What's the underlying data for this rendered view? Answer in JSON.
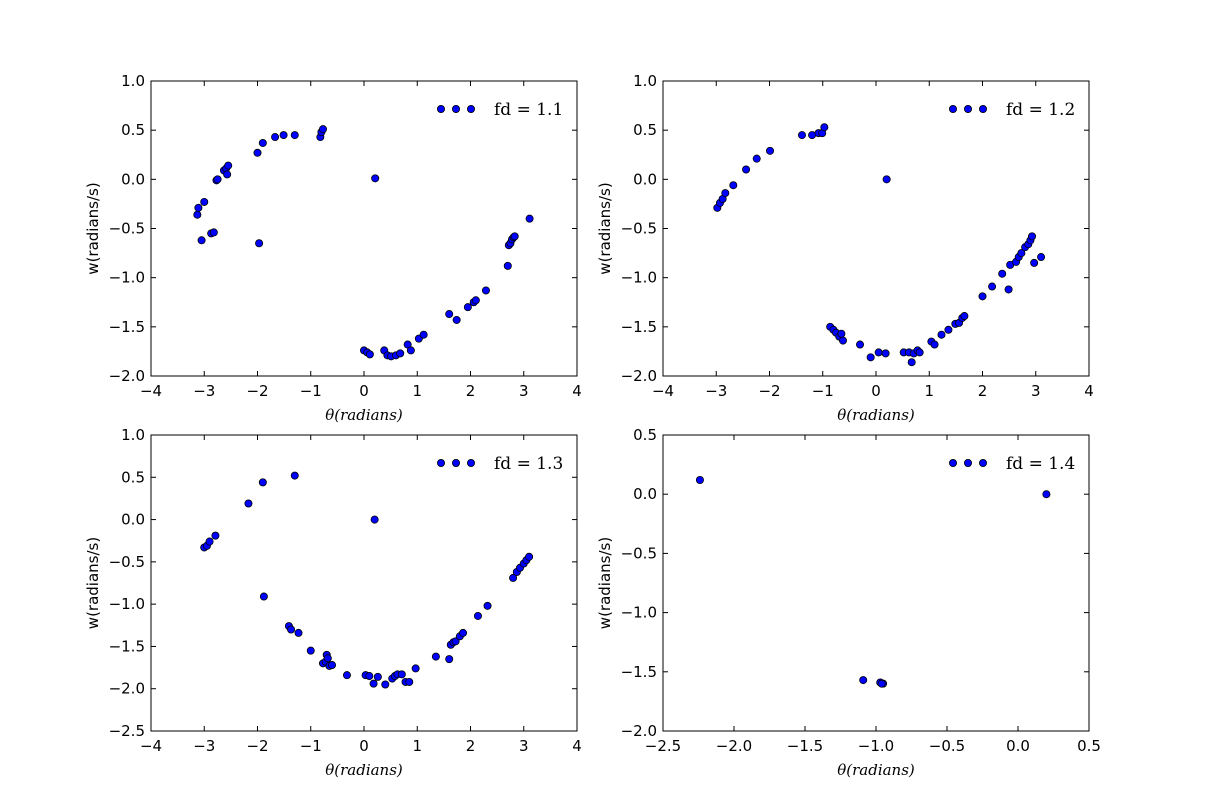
{
  "figure": {
    "background": "#ffffff"
  },
  "chart_data": [
    {
      "type": "scatter",
      "xlabel": "θ(radians)",
      "ylabel": "w(radians/s)",
      "xlim": [
        -4,
        4
      ],
      "ylim": [
        -2,
        1
      ],
      "xticks": [
        -4,
        -3,
        -2,
        -1,
        0,
        1,
        2,
        3,
        4
      ],
      "yticks": [
        -2.0,
        -1.5,
        -1.0,
        -0.5,
        0.0,
        0.5,
        1.0
      ],
      "xtick_labels": [
        "−4",
        "−3",
        "−2",
        "−1",
        "0",
        "1",
        "2",
        "3",
        "4"
      ],
      "ytick_labels": [
        "−2.0",
        "−1.5",
        "−1.0",
        "−0.5",
        "0.0",
        "0.5",
        "1.0"
      ],
      "legend": {
        "label": "fd = 1.1",
        "placement": "top-right"
      },
      "marker_color": "#0000ff",
      "x": [
        -3.13,
        -3.11,
        -3.05,
        -3.0,
        -2.87,
        -2.82,
        -2.77,
        -2.75,
        -2.63,
        -2.59,
        -2.57,
        -2.55,
        -2.0,
        -1.97,
        -1.9,
        -1.67,
        -1.51,
        -1.3,
        -0.82,
        -0.8,
        -0.77,
        0.0,
        0.06,
        0.11,
        0.21,
        0.38,
        0.44,
        0.51,
        0.6,
        0.68,
        0.82,
        0.88,
        1.03,
        1.12,
        1.6,
        1.74,
        1.95,
        2.06,
        2.1,
        2.29,
        2.7,
        2.72,
        2.75,
        2.78,
        2.81,
        2.83,
        3.11
      ],
      "y": [
        -0.36,
        -0.29,
        -0.62,
        -0.23,
        -0.55,
        -0.54,
        -0.01,
        0.0,
        0.09,
        0.11,
        0.05,
        0.14,
        0.27,
        -0.65,
        0.37,
        0.43,
        0.45,
        0.45,
        0.43,
        0.48,
        0.51,
        -1.74,
        -1.76,
        -1.78,
        0.01,
        -1.74,
        -1.79,
        -1.8,
        -1.79,
        -1.77,
        -1.68,
        -1.74,
        -1.62,
        -1.58,
        -1.37,
        -1.43,
        -1.3,
        -1.25,
        -1.23,
        -1.13,
        -0.88,
        -0.67,
        -0.65,
        -0.61,
        -0.59,
        -0.58,
        -0.4
      ]
    },
    {
      "type": "scatter",
      "xlabel": "θ(radians)",
      "ylabel": "w(radians/s)",
      "xlim": [
        -4,
        4
      ],
      "ylim": [
        -2,
        1
      ],
      "xticks": [
        -4,
        -3,
        -2,
        -1,
        0,
        1,
        2,
        3,
        4
      ],
      "yticks": [
        -2.0,
        -1.5,
        -1.0,
        -0.5,
        0.0,
        0.5,
        1.0
      ],
      "xtick_labels": [
        "−4",
        "−3",
        "−2",
        "−1",
        "0",
        "1",
        "2",
        "3",
        "4"
      ],
      "ytick_labels": [
        "−2.0",
        "−1.5",
        "−1.0",
        "−0.5",
        "0.0",
        "0.5",
        "1.0"
      ],
      "legend": {
        "label": "fd = 1.2",
        "placement": "top-right"
      },
      "marker_color": "#0000ff",
      "x": [
        -2.98,
        -2.93,
        -2.88,
        -2.83,
        -2.68,
        -2.44,
        -2.24,
        -1.99,
        -1.39,
        -1.2,
        -1.08,
        -1.01,
        -0.97,
        -0.86,
        -0.8,
        -0.75,
        -0.69,
        -0.65,
        -0.62,
        -0.3,
        -0.1,
        0.05,
        0.18,
        0.2,
        0.52,
        0.62,
        0.67,
        0.71,
        0.78,
        0.82,
        1.04,
        1.1,
        1.23,
        1.36,
        1.49,
        1.56,
        1.62,
        1.66,
        2.0,
        2.18,
        2.37,
        2.49,
        2.52,
        2.63,
        2.68,
        2.73,
        2.8,
        2.86,
        2.9,
        2.93,
        2.97,
        3.1
      ],
      "y": [
        -0.29,
        -0.24,
        -0.2,
        -0.14,
        -0.06,
        0.1,
        0.21,
        0.29,
        0.45,
        0.45,
        0.47,
        0.47,
        0.53,
        -1.5,
        -1.53,
        -1.56,
        -1.6,
        -1.57,
        -1.64,
        -1.68,
        -1.81,
        -1.76,
        -1.77,
        0.0,
        -1.76,
        -1.76,
        -1.86,
        -1.77,
        -1.74,
        -1.76,
        -1.65,
        -1.68,
        -1.58,
        -1.53,
        -1.47,
        -1.46,
        -1.41,
        -1.39,
        -1.19,
        -1.09,
        -0.96,
        -1.12,
        -0.87,
        -0.84,
        -0.79,
        -0.75,
        -0.69,
        -0.66,
        -0.62,
        -0.58,
        -0.85,
        -0.79
      ]
    },
    {
      "type": "scatter",
      "xlabel": "θ(radians)",
      "ylabel": "w(radians/s)",
      "xlim": [
        -4,
        4
      ],
      "ylim": [
        -2.5,
        1
      ],
      "xticks": [
        -4,
        -3,
        -2,
        -1,
        0,
        1,
        2,
        3,
        4
      ],
      "yticks": [
        -2.5,
        -2.0,
        -1.5,
        -1.0,
        -0.5,
        0.0,
        0.5,
        1.0
      ],
      "xtick_labels": [
        "−4",
        "−3",
        "−2",
        "−1",
        "0",
        "1",
        "2",
        "3",
        "4"
      ],
      "ytick_labels": [
        "−2.5",
        "−2.0",
        "−1.5",
        "−1.0",
        "−0.5",
        "0.0",
        "0.5",
        "1.0"
      ],
      "legend": {
        "label": "fd = 1.3",
        "placement": "top-right"
      },
      "marker_color": "#0000ff",
      "x": [
        -3.0,
        -2.95,
        -2.9,
        -2.79,
        -2.17,
        -1.9,
        -1.88,
        -1.3,
        -1.41,
        -1.37,
        -1.23,
        -1.0,
        -0.77,
        -0.72,
        -0.7,
        -0.68,
        -0.65,
        -0.6,
        -0.32,
        0.03,
        0.1,
        0.18,
        0.2,
        0.26,
        0.4,
        0.53,
        0.58,
        0.63,
        0.71,
        0.78,
        0.85,
        0.97,
        1.35,
        1.6,
        1.63,
        1.68,
        1.72,
        1.8,
        1.86,
        2.14,
        2.32,
        2.8,
        2.87,
        2.93,
        3.0,
        3.05,
        3.1
      ],
      "y": [
        -0.33,
        -0.31,
        -0.26,
        -0.19,
        0.19,
        0.44,
        -0.91,
        0.52,
        -1.26,
        -1.3,
        -1.34,
        -1.55,
        -1.7,
        -1.68,
        -1.6,
        -1.64,
        -1.73,
        -1.72,
        -1.84,
        -1.84,
        -1.85,
        -1.94,
        0.0,
        -1.86,
        -1.95,
        -1.88,
        -1.85,
        -1.83,
        -1.83,
        -1.92,
        -1.92,
        -1.76,
        -1.62,
        -1.65,
        -1.48,
        -1.45,
        -1.44,
        -1.38,
        -1.34,
        -1.14,
        -1.02,
        -0.69,
        -0.62,
        -0.57,
        -0.52,
        -0.48,
        -0.44
      ]
    },
    {
      "type": "scatter",
      "xlabel": "θ(radians)",
      "ylabel": "w(radians/s)",
      "xlim": [
        -2.5,
        0.5
      ],
      "ylim": [
        -2,
        0.5
      ],
      "xticks": [
        -2.5,
        -2.0,
        -1.5,
        -1.0,
        -0.5,
        0.0,
        0.5
      ],
      "yticks": [
        -2.0,
        -1.5,
        -1.0,
        -0.5,
        0.0,
        0.5
      ],
      "xtick_labels": [
        "−2.5",
        "−2.0",
        "−1.5",
        "−1.0",
        "−0.5",
        "0.0",
        "0.5"
      ],
      "ytick_labels": [
        "−2.0",
        "−1.5",
        "−1.0",
        "−0.5",
        "0.0",
        "0.5"
      ],
      "legend": {
        "label": "fd = 1.4",
        "placement": "top-right"
      },
      "marker_color": "#0000ff",
      "x": [
        -2.24,
        -1.09,
        -0.97,
        -0.95,
        -0.96,
        0.2
      ],
      "y": [
        0.12,
        -1.57,
        -1.59,
        -1.6,
        -1.6,
        0.0
      ]
    }
  ]
}
